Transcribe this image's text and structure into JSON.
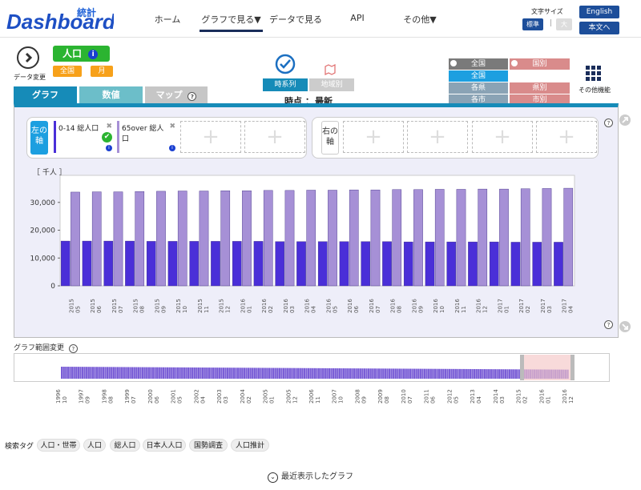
{
  "header": {
    "logo_text": "Dashboard",
    "logo_kanji": "統計",
    "nav": [
      "ホーム",
      "グラフで見る▼",
      "データで見る",
      "API",
      "その他▼"
    ],
    "font_size_label": "文字サイズ",
    "font_standard": "標準",
    "font_large": "大",
    "english": "English",
    "to_body": "本文へ"
  },
  "data_panel": {
    "change_label": "データ変更",
    "indicator": "人口",
    "region": "全国",
    "period": "月"
  },
  "view": {
    "timeseries": "時系列",
    "by_region": "地域別",
    "time_label": "時点 ：",
    "time_value": "最新"
  },
  "region_grid": {
    "all_country": "全国",
    "by_country": "国別",
    "all_nation": "全国",
    "prefecture": "各県",
    "by_pref": "県別",
    "city": "各市",
    "by_city": "市別",
    "other": "その他機能"
  },
  "tabs": [
    "グラフ",
    "数値",
    "マップ"
  ],
  "axis": {
    "left": "左の軸",
    "right": "右の軸",
    "series1": "0-14 総人口",
    "series2": "65over 総人口"
  },
  "chart_data": {
    "type": "bar",
    "ylabel": "［ 千人 ］",
    "ylim": [
      0,
      38000
    ],
    "yticks": [
      "0",
      "10,000",
      "20,000",
      "30,000"
    ],
    "categories": [
      "2015 05",
      "2015 06",
      "2015 07",
      "2015 08",
      "2015 09",
      "2015 10",
      "2015 11",
      "2015 12",
      "2016 01",
      "2016 02",
      "2016 03",
      "2016 04",
      "2016 05",
      "2016 06",
      "2016 07",
      "2016 08",
      "2016 09",
      "2016 10",
      "2016 11",
      "2016 12",
      "2017 01",
      "2017 02",
      "2017 03",
      "2017 04"
    ],
    "series": [
      {
        "name": "0-14 総人口",
        "color": "#4a2fd8",
        "values": [
          16100,
          16100,
          16100,
          16100,
          16000,
          16000,
          16000,
          16000,
          16000,
          16000,
          15900,
          15900,
          15900,
          15900,
          15900,
          15900,
          15800,
          15800,
          15800,
          15800,
          15800,
          15700,
          15700,
          15700
        ]
      },
      {
        "name": "65over 総人口",
        "color": "#a690d6",
        "values": [
          33700,
          33800,
          33800,
          33900,
          34000,
          34100,
          34100,
          34200,
          34200,
          34300,
          34300,
          34400,
          34400,
          34500,
          34500,
          34600,
          34600,
          34700,
          34700,
          34800,
          34800,
          34900,
          35000,
          35100
        ]
      }
    ]
  },
  "range": {
    "label": "グラフ範囲変更",
    "ticks": [
      "1996 10",
      "1997 09",
      "1998 08",
      "1999 07",
      "2000 06",
      "2001 05",
      "2002 04",
      "2003 03",
      "2004 02",
      "2005 01",
      "2005 12",
      "2006 11",
      "2007 10",
      "2008 09",
      "2009 08",
      "2010 07",
      "2011 06",
      "2012 05",
      "2013 04",
      "2014 03",
      "2015 02",
      "2016 01",
      "2016 12"
    ]
  },
  "tags": {
    "label": "検索タグ",
    "items": [
      "人口・世帯",
      "人口",
      "総人口",
      "日本人人口",
      "国勢調査",
      "人口推計"
    ]
  },
  "recent": "最近表示したグラフ",
  "colors": {
    "accent": "#168bb8",
    "navy": "#1d4e9a",
    "green": "#2bb431",
    "orange": "#f7a11a",
    "teal": "#6cbec9"
  }
}
